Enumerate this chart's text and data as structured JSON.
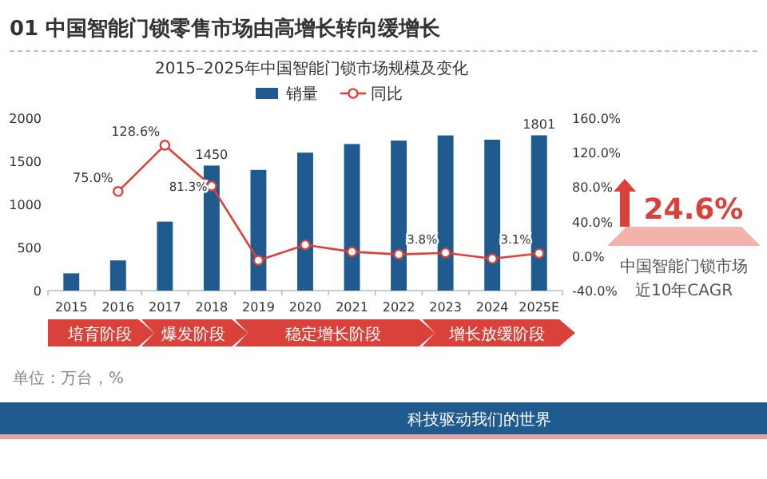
{
  "chart_data": {
    "type": "bar",
    "title": "01 中国智能门锁零售市场由高增长转向缓增长",
    "subtitle": "2015–2025年中国智能门锁市场规模及变化",
    "categories": [
      "2015",
      "2016",
      "2017",
      "2018",
      "2019",
      "2020",
      "2021",
      "2022",
      "2023",
      "2024",
      "2025E"
    ],
    "series": [
      {
        "name": "销量",
        "color": "#1f5b8e",
        "values": [
          200,
          350,
          800,
          1450,
          1400,
          1600,
          1700,
          1740,
          1800,
          1750,
          1801
        ],
        "value_labels": [
          null,
          null,
          null,
          "1450",
          null,
          null,
          null,
          null,
          null,
          null,
          "1801"
        ]
      },
      {
        "name": "同比",
        "type": "line",
        "axis": "y2",
        "color": "#d9423a",
        "marker": "circle",
        "values": [
          null,
          75.0,
          128.6,
          81.3,
          -5,
          13,
          5,
          2,
          3.8,
          -3,
          3.1
        ],
        "value_labels": [
          null,
          "75.0%",
          "128.6%",
          "81.3%",
          null,
          null,
          null,
          null,
          "3.8%",
          null,
          "3.1%"
        ]
      }
    ],
    "ylim": [
      0,
      2000
    ],
    "yticks": [
      0,
      500,
      1000,
      1500,
      2000
    ],
    "y2lim": [
      -40,
      160
    ],
    "y2ticks": [
      {
        "value": -40,
        "label": "-40.0%"
      },
      {
        "value": 0,
        "label": "0.0%"
      },
      {
        "value": 40,
        "label": "40.0%"
      },
      {
        "value": 80,
        "label": "80.0%"
      },
      {
        "value": 120,
        "label": "120.0%"
      },
      {
        "value": 160,
        "label": "160.0%"
      }
    ],
    "legend": "top",
    "annotations": [
      "培育阶段",
      "爆发阶段",
      "稳定增长阶段",
      "增长放缓阶段",
      "单位：万台，%",
      "科技驱动我们的世界",
      "24.6%",
      "中国智能门锁市场",
      "近10年CAGR"
    ]
  }
}
